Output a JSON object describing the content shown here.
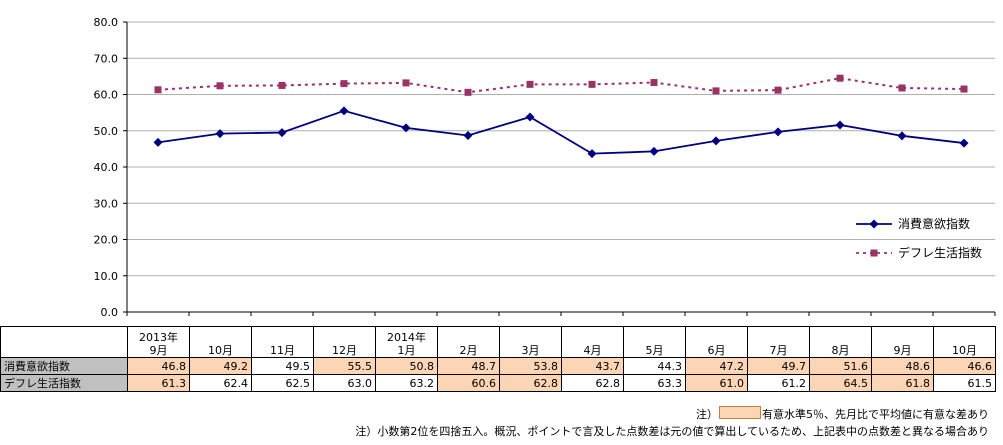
{
  "chart_data": {
    "type": "line",
    "categories": [
      "2013年\n9月",
      "10月",
      "11月",
      "12月",
      "2014年\n1月",
      "2月",
      "3月",
      "4月",
      "5月",
      "6月",
      "7月",
      "8月",
      "9月",
      "10月"
    ],
    "series": [
      {
        "name": "消費意欲指数",
        "color": "#000080",
        "marker": "diamond",
        "style": "solid",
        "values": [
          46.8,
          49.2,
          49.5,
          55.5,
          50.8,
          48.7,
          53.8,
          43.7,
          44.3,
          47.2,
          49.7,
          51.6,
          48.6,
          46.6
        ],
        "significant": [
          true,
          true,
          false,
          true,
          true,
          true,
          true,
          true,
          false,
          true,
          true,
          true,
          true,
          true
        ]
      },
      {
        "name": "デフレ生活指数",
        "color": "#993366",
        "marker": "square",
        "style": "dotted",
        "values": [
          61.3,
          62.4,
          62.5,
          63.0,
          63.2,
          60.6,
          62.8,
          62.8,
          63.3,
          61.0,
          61.2,
          64.5,
          61.8,
          61.5
        ],
        "significant": [
          true,
          false,
          false,
          false,
          false,
          true,
          true,
          false,
          false,
          true,
          false,
          true,
          true,
          false
        ]
      }
    ],
    "yticks": [
      "0.0",
      "10.0",
      "20.0",
      "30.0",
      "40.0",
      "50.0",
      "60.0",
      "70.0",
      "80.0"
    ],
    "ylim": [
      0,
      80
    ],
    "grid": "horizontal",
    "legend": "right"
  },
  "notes": {
    "significance_prefix": "注）",
    "significance_text": "有意水準5％、先月比で平均値に有意な差あり",
    "rounding": "注）小数第2位を四捨五入。概況、ポイントで言及した点数差は元の値で算出しているため、上記表中の点数差と異なる場合あり"
  },
  "colors": {
    "significant_fill": "#fcd5b4",
    "header_fill": "#c0c0c0"
  }
}
